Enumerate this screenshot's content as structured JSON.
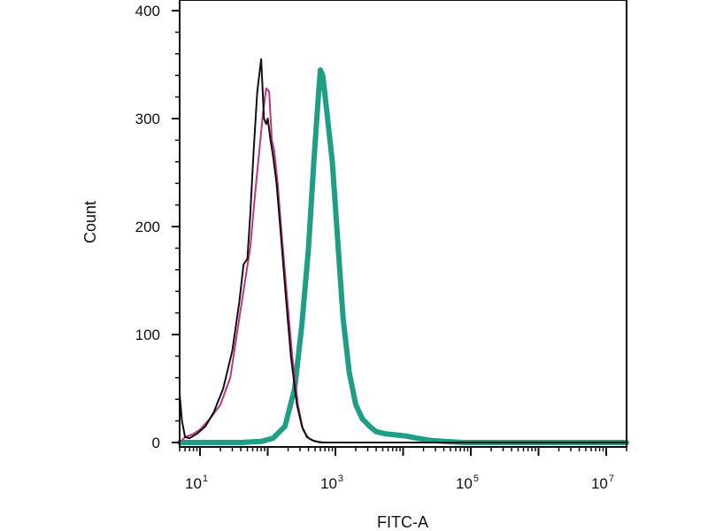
{
  "chart_data": {
    "type": "line",
    "xlabel": "FITC-A",
    "ylabel": "Count",
    "x_scale": "log",
    "xlim": [
      5,
      20000000
    ],
    "ylim": [
      0,
      400
    ],
    "grid": false,
    "legend": "none",
    "y_ticks": [
      {
        "value": 0,
        "label": "0"
      },
      {
        "value": 100,
        "label": "100"
      },
      {
        "value": 200,
        "label": "200"
      },
      {
        "value": 300,
        "label": "300"
      },
      {
        "value": 400,
        "label": "400"
      }
    ],
    "x_ticks": [
      {
        "value": 10,
        "base": "10",
        "exp": "1"
      },
      {
        "value": 1000,
        "base": "10",
        "exp": "3"
      },
      {
        "value": 100000,
        "base": "10",
        "exp": "5"
      },
      {
        "value": 10000000,
        "base": "10",
        "exp": "7"
      }
    ],
    "series": [
      {
        "color": "#1f9e86",
        "width": 6,
        "x": [
          5,
          40,
          80,
          120,
          180,
          250,
          320,
          400,
          480,
          560,
          600,
          650,
          750,
          900,
          1100,
          1300,
          1600,
          2000,
          2500,
          3200,
          4000,
          5500,
          8000,
          11000,
          16000,
          25000,
          40000,
          80000,
          200000,
          1000000,
          20000000
        ],
        "y": [
          0,
          0,
          1,
          4,
          15,
          50,
          110,
          180,
          260,
          320,
          345,
          340,
          305,
          260,
          180,
          115,
          65,
          35,
          22,
          15,
          10,
          8,
          7,
          6,
          4,
          2,
          1,
          0,
          0,
          0,
          0
        ]
      },
      {
        "color": "#c0357f",
        "width": 2,
        "x": [
          5,
          6,
          8,
          10,
          14,
          20,
          28,
          35,
          45,
          55,
          65,
          75,
          85,
          95,
          105,
          115,
          125,
          140,
          160,
          190,
          230,
          280,
          330,
          400,
          500,
          700,
          1000,
          2000,
          20000000
        ],
        "y": [
          0,
          5,
          8,
          12,
          22,
          35,
          60,
          100,
          145,
          180,
          230,
          270,
          305,
          328,
          325,
          280,
          270,
          240,
          195,
          140,
          80,
          35,
          12,
          4,
          1,
          0,
          0,
          0,
          0
        ]
      },
      {
        "color": "#111111",
        "width": 2,
        "x": [
          5,
          5.4,
          6,
          7,
          9,
          12,
          16,
          22,
          30,
          38,
          44,
          50,
          55,
          62,
          70,
          80,
          88,
          95,
          100,
          110,
          120,
          135,
          155,
          185,
          220,
          270,
          320,
          380,
          460,
          600,
          1000,
          20000000
        ],
        "y": [
          45,
          20,
          5,
          4,
          8,
          15,
          28,
          50,
          85,
          130,
          165,
          170,
          210,
          270,
          325,
          355,
          300,
          295,
          300,
          280,
          265,
          240,
          195,
          135,
          80,
          35,
          15,
          5,
          2,
          0,
          0,
          0
        ]
      }
    ]
  }
}
